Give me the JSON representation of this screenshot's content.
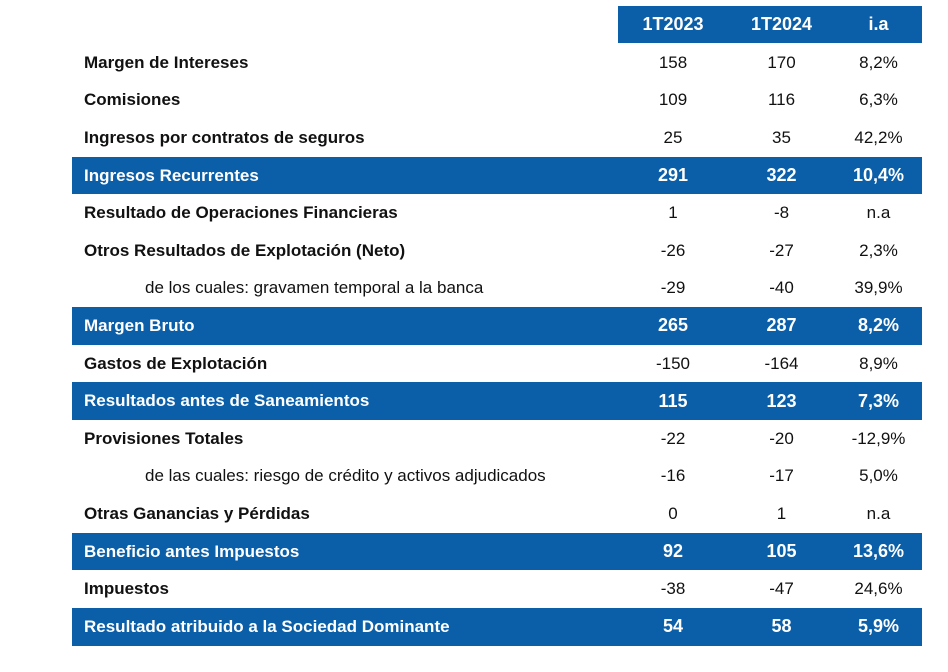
{
  "header": {
    "columns": [
      "1T2023",
      "1T2024",
      "i.a"
    ]
  },
  "rows": [
    {
      "label": "Margen de Intereses",
      "v2023": "158",
      "v2024": "170",
      "ia": "8,2%",
      "type": "normal"
    },
    {
      "label": "Comisiones",
      "v2023": "109",
      "v2024": "116",
      "ia": "6,3%",
      "type": "normal"
    },
    {
      "label": "Ingresos por contratos de seguros",
      "v2023": "25",
      "v2024": "35",
      "ia": "42,2%",
      "type": "normal"
    },
    {
      "label": "Ingresos Recurrentes",
      "v2023": "291",
      "v2024": "322",
      "ia": "10,4%",
      "type": "highlight"
    },
    {
      "label": "Resultado de Operaciones Financieras",
      "v2023": "1",
      "v2024": "-8",
      "ia": "n.a",
      "type": "normal"
    },
    {
      "label": "Otros Resultados de Explotación (Neto)",
      "v2023": "-26",
      "v2024": "-27",
      "ia": "2,3%",
      "type": "normal"
    },
    {
      "label": "de los cuales: gravamen temporal a la banca",
      "v2023": "-29",
      "v2024": "-40",
      "ia": "39,9%",
      "type": "sub"
    },
    {
      "label": "Margen Bruto",
      "v2023": "265",
      "v2024": "287",
      "ia": "8,2%",
      "type": "highlight"
    },
    {
      "label": "Gastos de Explotación",
      "v2023": "-150",
      "v2024": "-164",
      "ia": "8,9%",
      "type": "normal"
    },
    {
      "label": "Resultados antes de Saneamientos",
      "v2023": "115",
      "v2024": "123",
      "ia": "7,3%",
      "type": "highlight"
    },
    {
      "label": "Provisiones Totales",
      "v2023": "-22",
      "v2024": "-20",
      "ia": "-12,9%",
      "type": "normal"
    },
    {
      "label": "de las cuales: riesgo de crédito y activos adjudicados",
      "v2023": "-16",
      "v2024": "-17",
      "ia": "5,0%",
      "type": "sub"
    },
    {
      "label": "Otras Ganancias y Pérdidas",
      "v2023": "0",
      "v2024": "1",
      "ia": "n.a",
      "type": "normal"
    },
    {
      "label": "Beneficio antes Impuestos",
      "v2023": "92",
      "v2024": "105",
      "ia": "13,6%",
      "type": "highlight"
    },
    {
      "label": "Impuestos",
      "v2023": "-38",
      "v2024": "-47",
      "ia": "24,6%",
      "type": "normal"
    },
    {
      "label": "Resultado atribuido a la Sociedad Dominante",
      "v2023": "54",
      "v2024": "58",
      "ia": "5,9%",
      "type": "highlight"
    }
  ]
}
